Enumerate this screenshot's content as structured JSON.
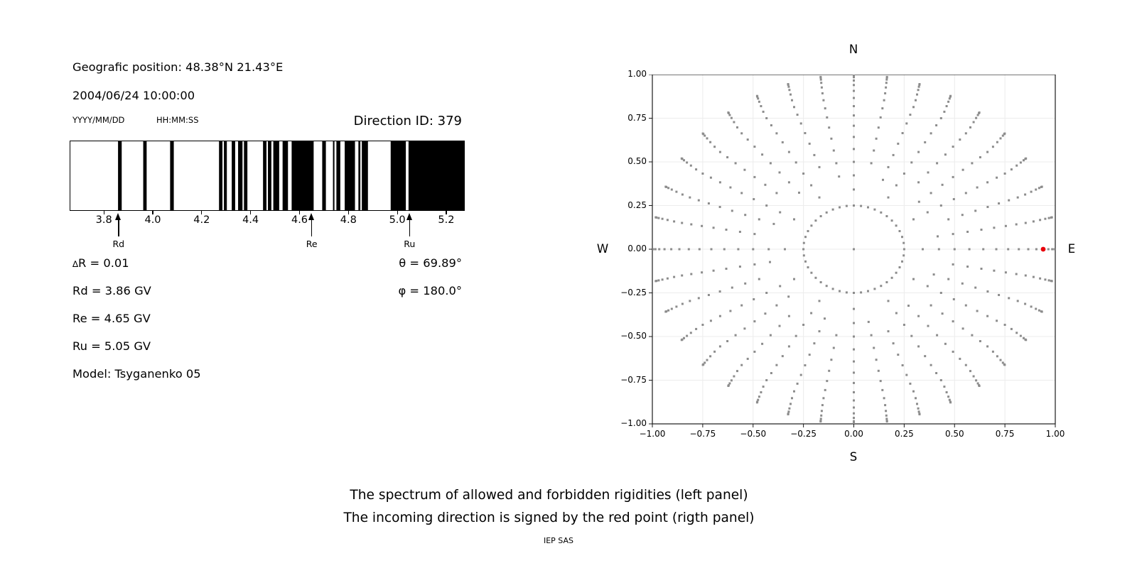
{
  "header": {
    "position_line": "Geografic position: 48.38°N 21.43°E",
    "datetime_line": "2004/06/24 10:00:00",
    "date_format": "YYYY/MM/DD",
    "time_format": "HH:MM:SS",
    "direction_id": "Direction ID: 379"
  },
  "values": {
    "delta_symbol": "∆",
    "delta_r_rest": "R = 0.01",
    "rd": "Rd = 3.86 GV",
    "re": "Re = 4.65 GV",
    "ru": "Ru = 5.05 GV",
    "model": "Model: Tsyganenko 05",
    "theta": "θ = 69.89°",
    "phi": "φ = 180.0°"
  },
  "chart_data": [
    {
      "type": "bar",
      "name": "rigidity-spectrum",
      "title": "The spectrum of allowed and forbidden rigidities",
      "xlim": [
        3.66,
        5.27
      ],
      "xticks": [
        3.8,
        4.0,
        4.2,
        4.4,
        4.6,
        4.8,
        5.0,
        5.2
      ],
      "xtick_labels": [
        "3.8",
        "4.0",
        "4.2",
        "4.4",
        "4.6",
        "4.8",
        "5.0",
        "5.2"
      ],
      "bar_color": "#000000",
      "forbidden_bands": [
        [
          3.855,
          3.87
        ],
        [
          3.958,
          3.972
        ],
        [
          4.068,
          4.083
        ],
        [
          4.268,
          4.282
        ],
        [
          4.288,
          4.3
        ],
        [
          4.32,
          4.334
        ],
        [
          4.346,
          4.364
        ],
        [
          4.37,
          4.384
        ],
        [
          4.448,
          4.462
        ],
        [
          4.468,
          4.482
        ],
        [
          4.49,
          4.514
        ],
        [
          4.528,
          4.55
        ],
        [
          4.565,
          4.655
        ],
        [
          4.69,
          4.705
        ],
        [
          4.734,
          4.74
        ],
        [
          4.748,
          4.764
        ],
        [
          4.782,
          4.824
        ],
        [
          4.838,
          4.846
        ],
        [
          4.852,
          4.877
        ],
        [
          4.97,
          5.032
        ],
        [
          5.043,
          5.27
        ]
      ],
      "markers": [
        {
          "label": "Rd",
          "value": 3.86
        },
        {
          "label": "Re",
          "value": 4.65
        },
        {
          "label": "Ru",
          "value": 5.05
        }
      ]
    },
    {
      "type": "scatter",
      "name": "incoming-direction-map",
      "xlim": [
        -1,
        1
      ],
      "ylim": [
        -1,
        1
      ],
      "xticks": [
        -1,
        -0.75,
        -0.5,
        -0.25,
        0,
        0.25,
        0.5,
        0.75,
        1
      ],
      "xtick_labels": [
        "−1.00",
        "−0.75",
        "−0.50",
        "−0.25",
        "0.00",
        "0.25",
        "0.50",
        "0.75",
        "1.00"
      ],
      "yticks": [
        -1,
        -0.75,
        -0.5,
        -0.25,
        0,
        0.25,
        0.5,
        0.75,
        1
      ],
      "ytick_labels": [
        "−1.00",
        "−0.75",
        "−0.50",
        "−0.25",
        "0.00",
        "0.25",
        "0.50",
        "0.75",
        "1.00"
      ],
      "grid": true,
      "compass": {
        "top": "N",
        "bottom": "S",
        "left": "W",
        "right": "E"
      },
      "dot_color": "#8c8c8c",
      "dots": {
        "center": [
          0,
          0
        ],
        "ring": {
          "radius": 0.25,
          "count": 44
        },
        "spokes": {
          "count": 36,
          "azimuth_step_deg": 10,
          "zenith_min_deg": 20,
          "zenith_max_deg": 90,
          "zenith_step_deg": 5,
          "radius_rule": "sin(zenith)"
        }
      },
      "red_point": {
        "x": 0.94,
        "y": 0.0,
        "color": "#e8000b"
      }
    }
  ],
  "caption": {
    "line1": "The spectrum of allowed and forbidden rigidities (left panel)",
    "line2": "The incoming direction is signed by the red point (rigth panel)",
    "credit": "IEP SAS"
  }
}
